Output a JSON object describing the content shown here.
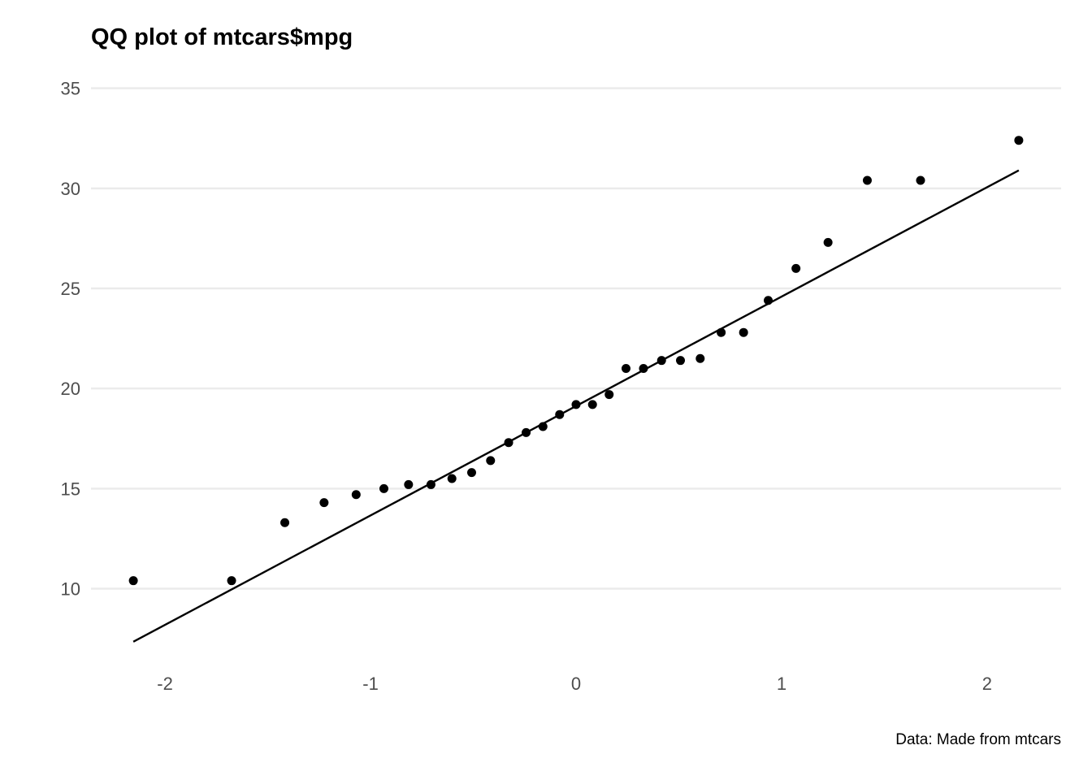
{
  "chart_data": {
    "type": "scatter",
    "title": "QQ plot of mtcars$mpg",
    "caption": "Data: Made from mtcars",
    "xlabel": "",
    "ylabel": "",
    "xlim": [
      -2.36,
      2.36
    ],
    "ylim": [
      5.8,
      36
    ],
    "x_ticks": [
      -2,
      -1,
      0,
      1,
      2
    ],
    "x_tick_labels": [
      "-2",
      "-1",
      "0",
      "1",
      "2"
    ],
    "y_ticks": [
      10,
      15,
      20,
      25,
      30,
      35
    ],
    "y_tick_labels": [
      "10",
      "15",
      "20",
      "25",
      "30",
      "35"
    ],
    "grid": "horizontal-major",
    "legend": "none",
    "point_color": "#000000",
    "line_color": "#000000",
    "grid_color": "#ebebeb",
    "series": [
      {
        "kind": "points",
        "x": [
          -2.154,
          -1.676,
          -1.417,
          -1.226,
          -1.07,
          -0.935,
          -0.815,
          -0.706,
          -0.604,
          -0.508,
          -0.416,
          -0.328,
          -0.243,
          -0.161,
          -0.08,
          0.0,
          0.08,
          0.161,
          0.243,
          0.328,
          0.416,
          0.508,
          0.604,
          0.706,
          0.815,
          0.935,
          1.07,
          1.226,
          1.417,
          1.676,
          2.154
        ],
        "y": [
          10.4,
          10.4,
          13.3,
          14.3,
          14.7,
          15.0,
          15.2,
          15.2,
          15.5,
          15.8,
          16.4,
          17.3,
          17.8,
          18.1,
          18.7,
          19.2,
          19.2,
          19.7,
          21.0,
          21.0,
          21.4,
          21.4,
          21.5,
          22.8,
          22.8,
          24.4,
          26.0,
          27.3,
          30.4,
          30.4,
          32.4
        ]
      },
      {
        "kind": "reference-line",
        "x": [
          -2.154,
          2.154
        ],
        "y": [
          7.35,
          30.9
        ]
      }
    ]
  }
}
